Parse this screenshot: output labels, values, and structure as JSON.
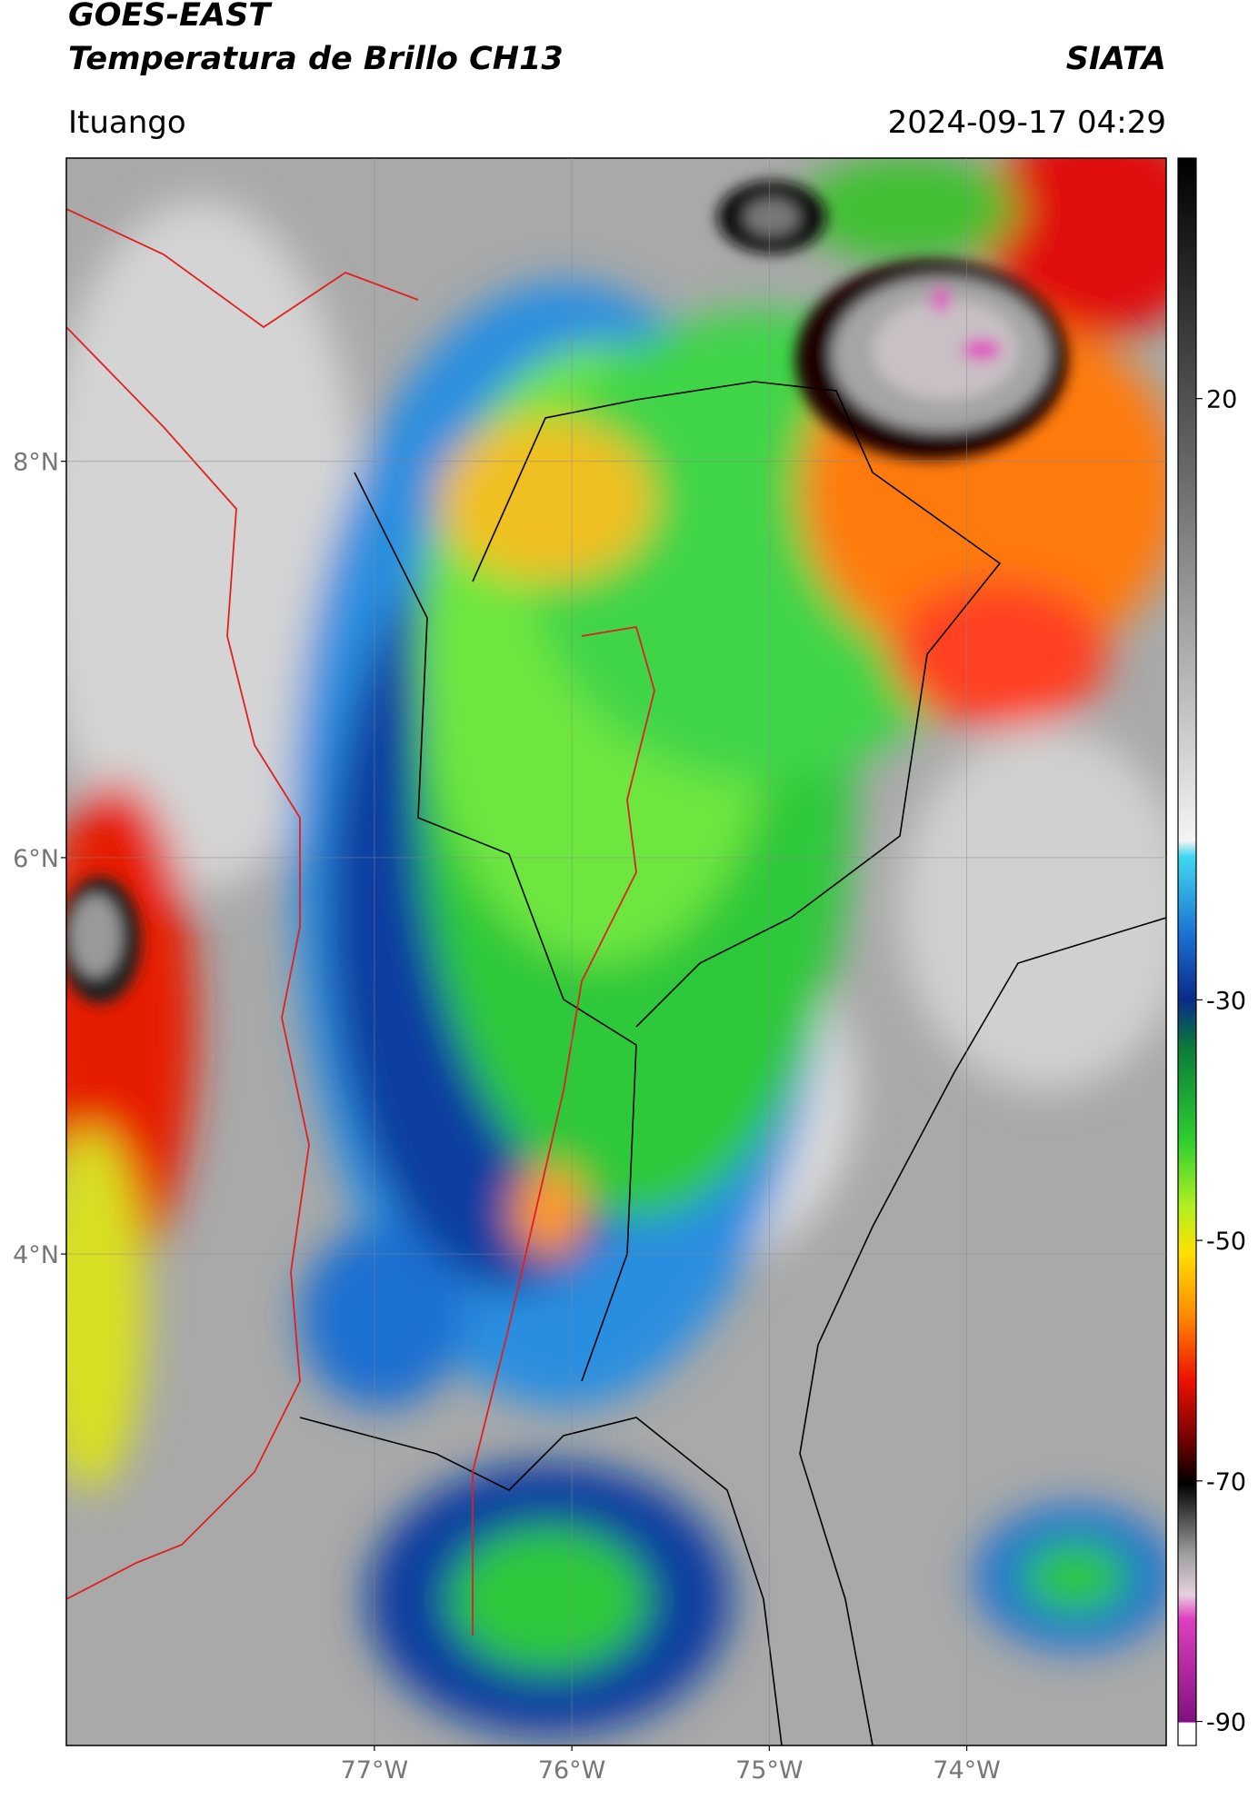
{
  "header": {
    "title": "GOES-EAST",
    "subtitle": "Temperatura de Brillo CH13",
    "source": "SIATA",
    "location": "Ituango",
    "timestamp": "2024-09-17 04:29"
  },
  "map": {
    "lat_lim": [
      1.52,
      9.53
    ],
    "lon_lim": [
      -78.56,
      -72.99
    ],
    "lat_ticks": [
      {
        "value": 8,
        "label": "8°N"
      },
      {
        "value": 6,
        "label": "6°N"
      },
      {
        "value": 4,
        "label": "4°N"
      }
    ],
    "lon_ticks": [
      {
        "value": -77,
        "label": "77°W"
      },
      {
        "value": -76,
        "label": "76°W"
      },
      {
        "value": -75,
        "label": "75°W"
      },
      {
        "value": -74,
        "label": "74°W"
      }
    ]
  },
  "colorbar": {
    "lim": [
      -92,
      40
    ],
    "ticks": [
      20,
      -30,
      -50,
      -70,
      -90
    ]
  }
}
